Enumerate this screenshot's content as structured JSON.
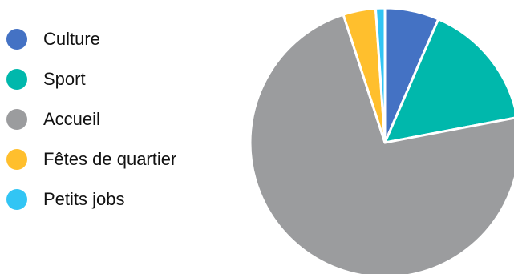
{
  "chart_data": {
    "type": "pie",
    "categories": [
      "Culture",
      "Sport",
      "Accueil",
      "Fêtes de quartier",
      "Petits jobs"
    ],
    "values": [
      6.5,
      15.5,
      73.0,
      3.9,
      1.1
    ],
    "unit": "%",
    "colors": [
      "#4472c4",
      "#00b8ac",
      "#9b9c9e",
      "#ffbf2d",
      "#32c5f4"
    ],
    "start_angle_deg": 0,
    "direction": "clockwise",
    "legend_position": "left"
  }
}
